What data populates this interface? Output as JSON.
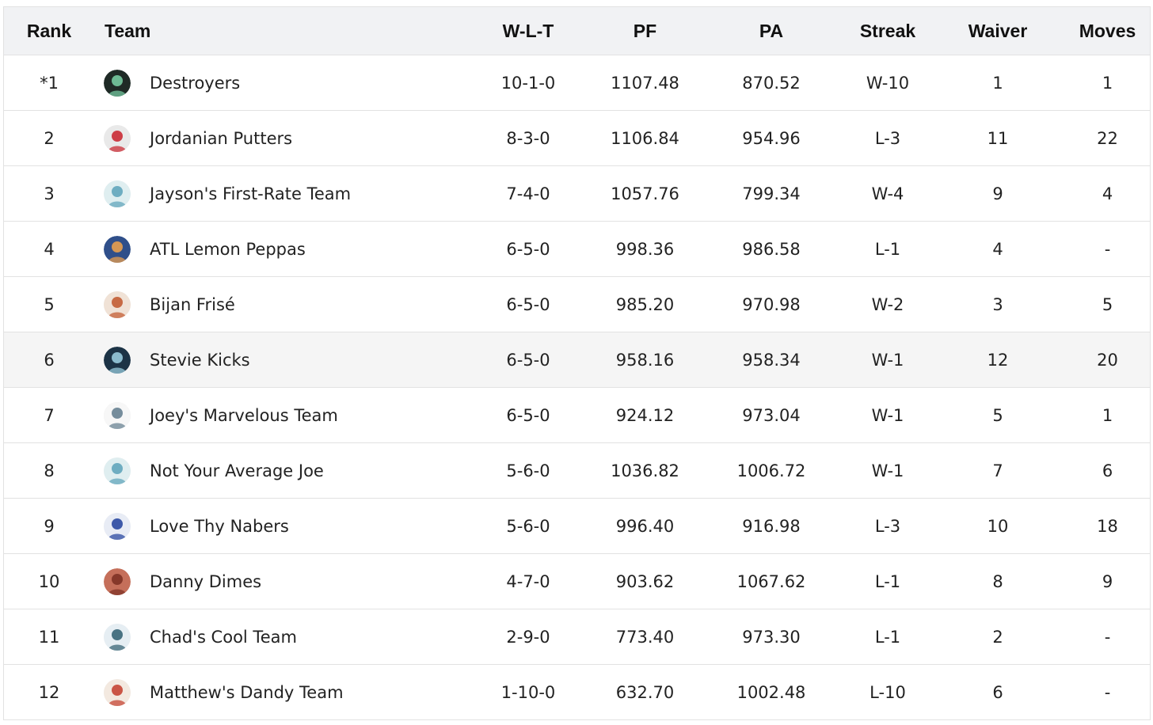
{
  "columns": {
    "rank": "Rank",
    "team": "Team",
    "wlt": "W-L-T",
    "pf": "PF",
    "pa": "PA",
    "streak": "Streak",
    "waiver": "Waiver",
    "moves": "Moves"
  },
  "rows": [
    {
      "rank": "*1",
      "team": "Destroyers",
      "wlt": "10-1-0",
      "pf": "1107.48",
      "pa": "870.52",
      "streak": "W-10",
      "waiver": "1",
      "moves": "1",
      "avatar_color": "#1f2a26",
      "avatar_accent": "#7bd3a8"
    },
    {
      "rank": "2",
      "team": "Jordanian Putters",
      "wlt": "8-3-0",
      "pf": "1106.84",
      "pa": "954.96",
      "streak": "L-3",
      "waiver": "11",
      "moves": "22",
      "avatar_color": "#e9e9e9",
      "avatar_accent": "#c8202a"
    },
    {
      "rank": "3",
      "team": "Jayson's First-Rate Team",
      "wlt": "7-4-0",
      "pf": "1057.76",
      "pa": "799.34",
      "streak": "W-4",
      "waiver": "9",
      "moves": "4",
      "avatar_color": "#dfeef0",
      "avatar_accent": "#5aa1b8"
    },
    {
      "rank": "4",
      "team": "ATL Lemon Peppas",
      "wlt": "6-5-0",
      "pf": "998.36",
      "pa": "986.58",
      "streak": "L-1",
      "waiver": "4",
      "moves": "-",
      "avatar_color": "#2f4f8a",
      "avatar_accent": "#f2a34a"
    },
    {
      "rank": "5",
      "team": "Bijan Frisé",
      "wlt": "6-5-0",
      "pf": "985.20",
      "pa": "970.98",
      "streak": "W-2",
      "waiver": "3",
      "moves": "5",
      "avatar_color": "#f0e2d6",
      "avatar_accent": "#c0552a"
    },
    {
      "rank": "6",
      "team": "Stevie Kicks",
      "wlt": "6-5-0",
      "pf": "958.16",
      "pa": "958.34",
      "streak": "W-1",
      "waiver": "12",
      "moves": "20",
      "avatar_color": "#1c3346",
      "avatar_accent": "#9fd4e6"
    },
    {
      "rank": "7",
      "team": "Joey's Marvelous Team",
      "wlt": "6-5-0",
      "pf": "924.12",
      "pa": "973.04",
      "streak": "W-1",
      "waiver": "5",
      "moves": "1",
      "avatar_color": "#f7f7f7",
      "avatar_accent": "#5f7a8c"
    },
    {
      "rank": "8",
      "team": "Not Your Average Joe",
      "wlt": "5-6-0",
      "pf": "1036.82",
      "pa": "1006.72",
      "streak": "W-1",
      "waiver": "7",
      "moves": "6",
      "avatar_color": "#dfeef0",
      "avatar_accent": "#5aa1b8"
    },
    {
      "rank": "9",
      "team": "Love Thy Nabers",
      "wlt": "5-6-0",
      "pf": "996.40",
      "pa": "916.98",
      "streak": "L-3",
      "waiver": "10",
      "moves": "18",
      "avatar_color": "#e8ecf5",
      "avatar_accent": "#1e3f9b"
    },
    {
      "rank": "10",
      "team": "Danny Dimes",
      "wlt": "4-7-0",
      "pf": "903.62",
      "pa": "1067.62",
      "streak": "L-1",
      "waiver": "8",
      "moves": "9",
      "avatar_color": "#c56f5a",
      "avatar_accent": "#7a2f22"
    },
    {
      "rank": "11",
      "team": "Chad's Cool Team",
      "wlt": "2-9-0",
      "pf": "773.40",
      "pa": "973.30",
      "streak": "L-1",
      "waiver": "2",
      "moves": "-",
      "avatar_color": "#e6eef3",
      "avatar_accent": "#2d5d6e"
    },
    {
      "rank": "12",
      "team": "Matthew's Dandy Team",
      "wlt": "1-10-0",
      "pf": "632.70",
      "pa": "1002.48",
      "streak": "L-10",
      "waiver": "6",
      "moves": "-",
      "avatar_color": "#f3e9e0",
      "avatar_accent": "#c23b2a"
    }
  ],
  "highlighted_row": "6"
}
